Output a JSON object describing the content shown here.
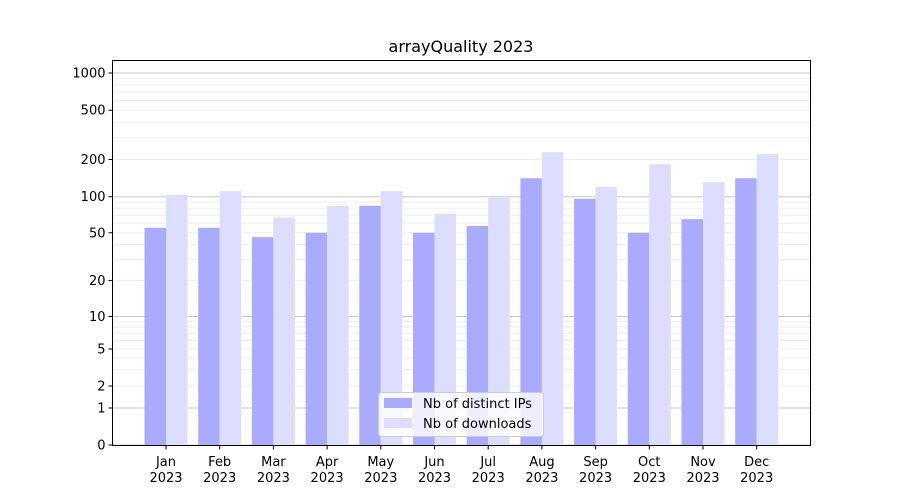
{
  "chart_data": {
    "type": "bar",
    "title": "arrayQuality 2023",
    "xlabel": "",
    "ylabel": "",
    "yscale": "symlog",
    "ylim": [
      0,
      1300
    ],
    "yticks": [
      0,
      1,
      2,
      5,
      10,
      20,
      50,
      100,
      200,
      500,
      1000
    ],
    "grid": true,
    "legend_position": "lower-center",
    "categories": [
      "Jan\n2023",
      "Feb\n2023",
      "Mar\n2023",
      "Apr\n2023",
      "May\n2023",
      "Jun\n2023",
      "Jul\n2023",
      "Aug\n2023",
      "Sep\n2023",
      "Oct\n2023",
      "Nov\n2023",
      "Dec\n2023"
    ],
    "series": [
      {
        "name": "Nb of distinct IPs",
        "color": "#aaaaff",
        "values": [
          55,
          55,
          46,
          50,
          84,
          50,
          57,
          141,
          96,
          50,
          65,
          141
        ]
      },
      {
        "name": "Nb of downloads",
        "color": "#ddddff",
        "values": [
          103,
          111,
          67,
          84,
          111,
          72,
          98,
          229,
          120,
          183,
          131,
          221
        ]
      }
    ]
  }
}
